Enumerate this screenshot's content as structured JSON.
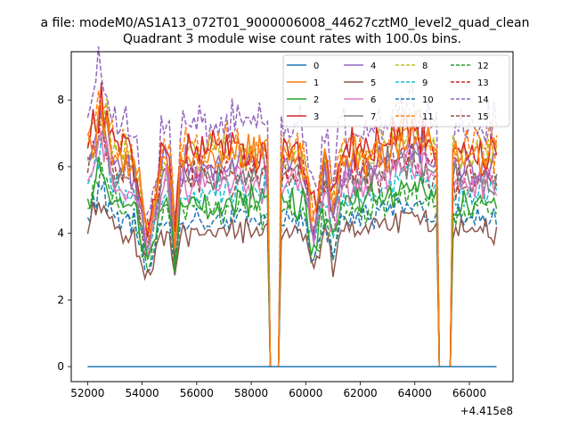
{
  "figure": {
    "suptitle": "a file: modeM0/AS1A13_072T01_9000006008_44627cztM0_level2_quad_clean",
    "title": "Quadrant 3 module wise count rates with 100.0s bins.",
    "offset_text": "+4.415e8"
  },
  "chart_data": {
    "type": "line",
    "title": "Quadrant 3 module wise count rates with 100.0s bins.",
    "xlabel": "",
    "ylabel": "",
    "x_offset": 441500000,
    "xlim": [
      51400,
      67600
    ],
    "ylim": [
      -0.45,
      9.45
    ],
    "xticks": [
      52000,
      54000,
      56000,
      58000,
      60000,
      62000,
      64000,
      66000
    ],
    "yticks": [
      0,
      2,
      4,
      6,
      8
    ],
    "x_range": [
      52000,
      67000
    ],
    "bin_seconds": 100,
    "gaps": [
      [
        58700,
        59000
      ],
      [
        64900,
        65300
      ]
    ],
    "grid": false,
    "legend": {
      "placement": "top-right",
      "columns": 4
    },
    "series": [
      {
        "name": "0",
        "color": "#1f77b4",
        "dash": "solid",
        "level": 0.0
      },
      {
        "name": "1",
        "color": "#ff7f0e",
        "dash": "solid",
        "level": 6.3
      },
      {
        "name": "2",
        "color": "#2ca02c",
        "dash": "solid",
        "level": 4.9
      },
      {
        "name": "3",
        "color": "#d62728",
        "dash": "solid",
        "level": 6.5
      },
      {
        "name": "4",
        "color": "#9467bd",
        "dash": "solid",
        "level": 6.0
      },
      {
        "name": "5",
        "color": "#8c564b",
        "dash": "solid",
        "level": 4.1
      },
      {
        "name": "6",
        "color": "#e377c2",
        "dash": "solid",
        "level": 5.5
      },
      {
        "name": "7",
        "color": "#7f7f7f",
        "dash": "solid",
        "level": 5.7
      },
      {
        "name": "8",
        "color": "#bcbd22",
        "dash": "dashed",
        "level": 6.4
      },
      {
        "name": "9",
        "color": "#17becf",
        "dash": "dashed",
        "level": 5.2
      },
      {
        "name": "10",
        "color": "#1f77b4",
        "dash": "dashed",
        "level": 4.4
      },
      {
        "name": "11",
        "color": "#ff7f0e",
        "dash": "dashed",
        "level": 6.6
      },
      {
        "name": "12",
        "color": "#2ca02c",
        "dash": "dashed",
        "level": 4.7
      },
      {
        "name": "13",
        "color": "#d62728",
        "dash": "dashed",
        "level": 5.9
      },
      {
        "name": "14",
        "color": "#9467bd",
        "dash": "dashed",
        "level": 7.2
      },
      {
        "name": "15",
        "color": "#8c564b",
        "dash": "dashed",
        "level": 5.6
      }
    ]
  }
}
